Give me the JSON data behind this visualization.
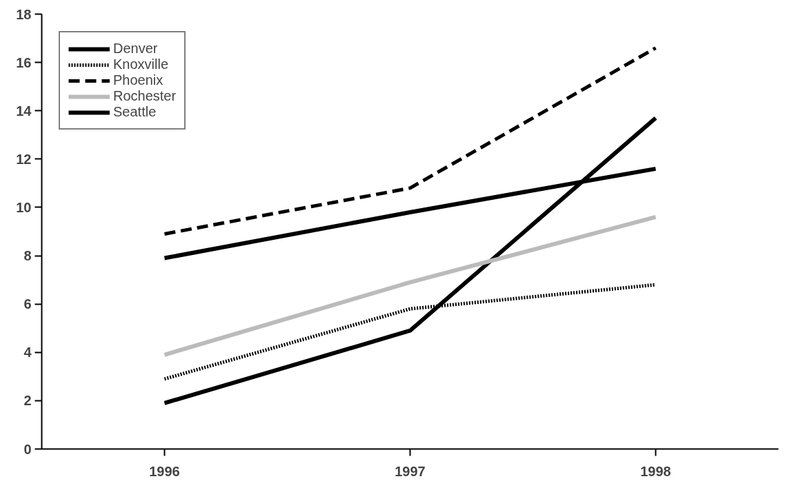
{
  "chart_data": {
    "type": "line",
    "x": [
      1996,
      1997,
      1998
    ],
    "xlim": [
      1995.5,
      1998.5
    ],
    "xticks": [
      1996,
      1997,
      1998
    ],
    "ylim": [
      0,
      18
    ],
    "yticks": [
      0,
      2,
      4,
      6,
      8,
      10,
      12,
      14,
      16,
      18
    ],
    "grid": false,
    "legend": "top left",
    "series": [
      {
        "name": "Denver",
        "color": "#000000",
        "line_style": "solid",
        "values": [
          1.9,
          4.9,
          13.7
        ]
      },
      {
        "name": "Knoxville",
        "color": "#000000",
        "line_style": "dotted",
        "values": [
          2.9,
          5.8,
          6.8
        ]
      },
      {
        "name": "Phoenix",
        "color": "#000000",
        "line_style": "dashed",
        "values": [
          8.9,
          10.8,
          16.6
        ]
      },
      {
        "name": "Rochester",
        "color": "#bbbbbb",
        "line_style": "solid",
        "values": [
          3.9,
          6.9,
          9.6
        ]
      },
      {
        "name": "Seattle",
        "color": "#000000",
        "line_style": "solid",
        "values": [
          7.9,
          9.8,
          11.6
        ]
      }
    ]
  }
}
